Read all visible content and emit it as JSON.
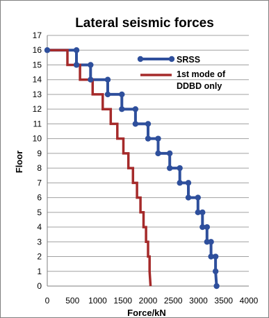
{
  "chart_data": {
    "type": "line",
    "title": "Lateral seismic forces",
    "xlabel": "Force/kN",
    "ylabel": "Floor",
    "xlim": [
      0,
      4000
    ],
    "ylim": [
      0,
      17
    ],
    "x_ticks": [
      "0",
      "500",
      "1000",
      "1500",
      "2000",
      "2500",
      "3000",
      "3500",
      "4000"
    ],
    "y_ticks": [
      "0",
      "1",
      "2",
      "3",
      "4",
      "5",
      "6",
      "7",
      "8",
      "9",
      "10",
      "11",
      "12",
      "13",
      "14",
      "15",
      "16",
      "17"
    ],
    "grid": true,
    "legend_position": "top-right",
    "series": [
      {
        "name": "SRSS",
        "color": "#2e4f9c",
        "markers": true,
        "x": [
          0,
          580,
          580,
          860,
          860,
          1200,
          1200,
          1480,
          1480,
          1750,
          1750,
          2000,
          2000,
          2200,
          2200,
          2430,
          2430,
          2630,
          2630,
          2800,
          2800,
          2990,
          2990,
          3080,
          3080,
          3170,
          3170,
          3250,
          3250,
          3340,
          3340,
          3360
        ],
        "y": [
          16,
          16,
          15,
          15,
          14,
          14,
          13,
          13,
          12,
          12,
          11,
          11,
          10,
          10,
          9,
          9,
          8,
          8,
          7,
          7,
          6,
          6,
          5,
          5,
          4,
          4,
          3,
          3,
          2,
          2,
          1,
          0
        ]
      },
      {
        "name": "1st mode of DDBD only",
        "color": "#a52a2a",
        "markers": false,
        "x": [
          0,
          400,
          400,
          650,
          650,
          900,
          900,
          1100,
          1100,
          1260,
          1260,
          1390,
          1390,
          1510,
          1510,
          1610,
          1610,
          1700,
          1700,
          1780,
          1780,
          1850,
          1850,
          1910,
          1910,
          1960,
          1960,
          2000,
          2000,
          2030,
          2030,
          2050
        ],
        "y": [
          16,
          16,
          15,
          15,
          14,
          14,
          13,
          13,
          12,
          12,
          11,
          11,
          10,
          10,
          9,
          9,
          8,
          8,
          7,
          7,
          6,
          6,
          5,
          5,
          4,
          4,
          3,
          3,
          2,
          2,
          1,
          0
        ]
      }
    ]
  }
}
